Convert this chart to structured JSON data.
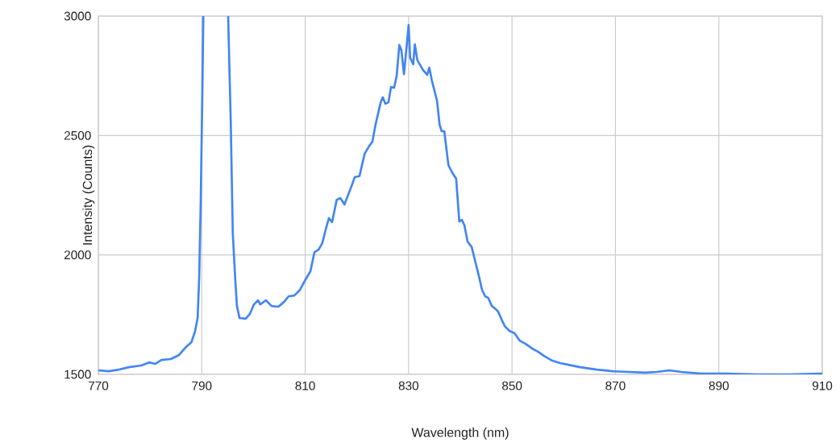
{
  "chart_data": {
    "type": "line",
    "xlabel": "Wavelength (nm)",
    "ylabel": "Intensity (Counts)",
    "xlim": [
      770,
      910
    ],
    "ylim": [
      1500,
      3000
    ],
    "xticks": [
      770,
      790,
      810,
      830,
      850,
      870,
      890,
      910
    ],
    "yticks": [
      1500,
      2000,
      2500,
      3000
    ],
    "grid": true,
    "line_style": "solid",
    "x": [
      770,
      772,
      774,
      775.9,
      778.3,
      779.8,
      781,
      782.2,
      784,
      785.6,
      786.8,
      788,
      788.7,
      789.2,
      789.5,
      789.8,
      790.1,
      790.3,
      792.7,
      795.1,
      795.6,
      796,
      796.5,
      796.8,
      797.3,
      798.5,
      799.3,
      800.1,
      800.9,
      801.3,
      802.4,
      803.5,
      804.8,
      805.9,
      806.8,
      807.9,
      809,
      809.9,
      811,
      811.8,
      812.6,
      813.3,
      814.1,
      814.6,
      815.2,
      816.1,
      816.8,
      817.6,
      818.8,
      819.6,
      820.5,
      821.5,
      822.4,
      823,
      823.6,
      824.6,
      825,
      825.5,
      826.1,
      826.6,
      827.2,
      827.7,
      828.2,
      828.6,
      829.1,
      829.7,
      830,
      830.3,
      830.9,
      831.2,
      831.7,
      832.8,
      833.6,
      834,
      834.5,
      835.5,
      836,
      836.4,
      836.9,
      837.7,
      838.4,
      839.2,
      839.8,
      840.3,
      840.8,
      841.4,
      842.2,
      842.9,
      843.6,
      844.2,
      844.8,
      845.4,
      846.1,
      846.7,
      847.3,
      848,
      848.6,
      849.5,
      850.5,
      851.5,
      852.8,
      853.9,
      855.1,
      856.2,
      857.8,
      859.3,
      860.9,
      863.2,
      866.4,
      869.5,
      872.6,
      875.7,
      878,
      880.4,
      882.7,
      886.6,
      891.3,
      897.5,
      903.8,
      910
    ],
    "series": [
      {
        "color": "#4285f4",
        "values": [
          1517,
          1513,
          1520,
          1530,
          1537,
          1550,
          1544,
          1560,
          1564,
          1581,
          1611,
          1635,
          1680,
          1736,
          1904,
          2225,
          2663,
          3000,
          null,
          3000,
          2562,
          2090,
          1888,
          1786,
          1736,
          1733,
          1753,
          1793,
          1810,
          1793,
          1810,
          1786,
          1783,
          1803,
          1827,
          1830,
          1854,
          1891,
          1931,
          2012,
          2022,
          2049,
          2117,
          2154,
          2137,
          2231,
          2238,
          2211,
          2279,
          2326,
          2330,
          2424,
          2457,
          2474,
          2545,
          2639,
          2660,
          2633,
          2639,
          2703,
          2700,
          2751,
          2879,
          2858,
          2757,
          2892,
          2963,
          2825,
          2798,
          2882,
          2815,
          2774,
          2754,
          2784,
          2730,
          2646,
          2545,
          2518,
          2518,
          2376,
          2346,
          2319,
          2140,
          2147,
          2124,
          2056,
          2033,
          1972,
          1911,
          1854,
          1827,
          1820,
          1786,
          1776,
          1763,
          1729,
          1702,
          1682,
          1672,
          1641,
          1625,
          1608,
          1594,
          1577,
          1557,
          1547,
          1540,
          1530,
          1520,
          1513,
          1510,
          1507,
          1510,
          1517,
          1510,
          1503,
          1503,
          1500,
          1500,
          1503
        ]
      }
    ]
  }
}
